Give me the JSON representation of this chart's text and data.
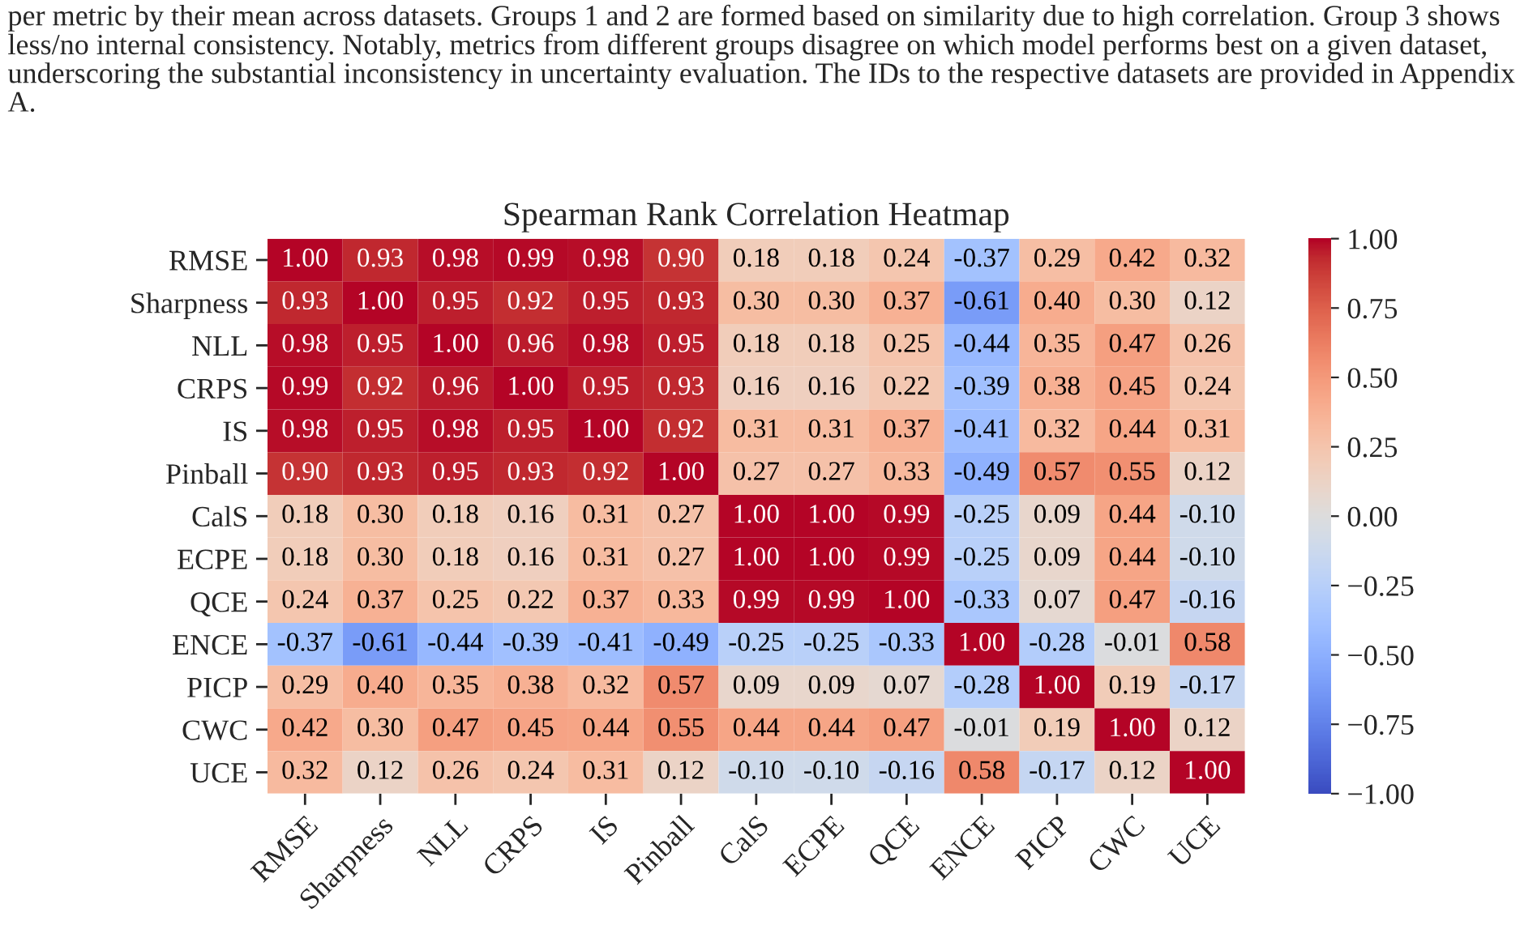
{
  "chart_data": {
    "type": "heatmap",
    "title": "Spearman Rank Correlation Heatmap",
    "annotations": [
      "per metric by their mean across datasets. Groups 1 and 2 are formed based on similarity due to high correlation. Group 3 shows less/no internal consistency. Notably, metrics from different groups disagree on which model performs best on a given dataset, underscoring the substantial inconsistency in uncertainty evaluation. The IDs to the respective datasets are provided in Appendix A."
    ],
    "categories": [
      "RMSE",
      "Sharpness",
      "NLL",
      "CRPS",
      "IS",
      "Pinball",
      "CalS",
      "ECPE",
      "QCE",
      "ENCE",
      "PICP",
      "CWC",
      "UCE"
    ],
    "y_categories": [
      "RMSE",
      "Sharpness",
      "NLL",
      "CRPS",
      "IS",
      "Pinball",
      "CalS",
      "ECPE",
      "QCE",
      "ENCE",
      "PICP",
      "CWC",
      "UCE"
    ],
    "cells": [
      [
        1.0,
        0.93,
        0.98,
        0.99,
        0.98,
        0.9,
        0.18,
        0.18,
        0.24,
        -0.37,
        0.29,
        0.42,
        0.32
      ],
      [
        0.93,
        1.0,
        0.95,
        0.92,
        0.95,
        0.93,
        0.3,
        0.3,
        0.37,
        -0.61,
        0.4,
        0.3,
        0.12
      ],
      [
        0.98,
        0.95,
        1.0,
        0.96,
        0.98,
        0.95,
        0.18,
        0.18,
        0.25,
        -0.44,
        0.35,
        0.47,
        0.26
      ],
      [
        0.99,
        0.92,
        0.96,
        1.0,
        0.95,
        0.93,
        0.16,
        0.16,
        0.22,
        -0.39,
        0.38,
        0.45,
        0.24
      ],
      [
        0.98,
        0.95,
        0.98,
        0.95,
        1.0,
        0.92,
        0.31,
        0.31,
        0.37,
        -0.41,
        0.32,
        0.44,
        0.31
      ],
      [
        0.9,
        0.93,
        0.95,
        0.93,
        0.92,
        1.0,
        0.27,
        0.27,
        0.33,
        -0.49,
        0.57,
        0.55,
        0.12
      ],
      [
        0.18,
        0.3,
        0.18,
        0.16,
        0.31,
        0.27,
        1.0,
        1.0,
        0.99,
        -0.25,
        0.09,
        0.44,
        -0.1
      ],
      [
        0.18,
        0.3,
        0.18,
        0.16,
        0.31,
        0.27,
        1.0,
        1.0,
        0.99,
        -0.25,
        0.09,
        0.44,
        -0.1
      ],
      [
        0.24,
        0.37,
        0.25,
        0.22,
        0.37,
        0.33,
        0.99,
        0.99,
        1.0,
        -0.33,
        0.07,
        0.47,
        -0.16
      ],
      [
        -0.37,
        -0.61,
        -0.44,
        -0.39,
        -0.41,
        -0.49,
        -0.25,
        -0.25,
        -0.33,
        1.0,
        -0.28,
        -0.01,
        0.58
      ],
      [
        0.29,
        0.4,
        0.35,
        0.38,
        0.32,
        0.57,
        0.09,
        0.09,
        0.07,
        -0.28,
        1.0,
        0.19,
        -0.17
      ],
      [
        0.42,
        0.3,
        0.47,
        0.45,
        0.44,
        0.55,
        0.44,
        0.44,
        0.47,
        -0.01,
        0.19,
        1.0,
        0.12
      ],
      [
        0.32,
        0.12,
        0.26,
        0.24,
        0.31,
        0.12,
        -0.1,
        -0.1,
        -0.16,
        0.58,
        -0.17,
        0.12,
        1.0
      ]
    ],
    "cell_labels": [
      [
        "1.00",
        "0.93",
        "0.98",
        "0.99",
        "0.98",
        "0.90",
        "0.18",
        "0.18",
        "0.24",
        "-0.37",
        "0.29",
        "0.42",
        "0.32"
      ],
      [
        "0.93",
        "1.00",
        "0.95",
        "0.92",
        "0.95",
        "0.93",
        "0.30",
        "0.30",
        "0.37",
        "-0.61",
        "0.40",
        "0.30",
        "0.12"
      ],
      [
        "0.98",
        "0.95",
        "1.00",
        "0.96",
        "0.98",
        "0.95",
        "0.18",
        "0.18",
        "0.25",
        "-0.44",
        "0.35",
        "0.47",
        "0.26"
      ],
      [
        "0.99",
        "0.92",
        "0.96",
        "1.00",
        "0.95",
        "0.93",
        "0.16",
        "0.16",
        "0.22",
        "-0.39",
        "0.38",
        "0.45",
        "0.24"
      ],
      [
        "0.98",
        "0.95",
        "0.98",
        "0.95",
        "1.00",
        "0.92",
        "0.31",
        "0.31",
        "0.37",
        "-0.41",
        "0.32",
        "0.44",
        "0.31"
      ],
      [
        "0.90",
        "0.93",
        "0.95",
        "0.93",
        "0.92",
        "1.00",
        "0.27",
        "0.27",
        "0.33",
        "-0.49",
        "0.57",
        "0.55",
        "0.12"
      ],
      [
        "0.18",
        "0.30",
        "0.18",
        "0.16",
        "0.31",
        "0.27",
        "1.00",
        "1.00",
        "0.99",
        "-0.25",
        "0.09",
        "0.44",
        "-0.10"
      ],
      [
        "0.18",
        "0.30",
        "0.18",
        "0.16",
        "0.31",
        "0.27",
        "1.00",
        "1.00",
        "0.99",
        "-0.25",
        "0.09",
        "0.44",
        "-0.10"
      ],
      [
        "0.24",
        "0.37",
        "0.25",
        "0.22",
        "0.37",
        "0.33",
        "0.99",
        "0.99",
        "1.00",
        "-0.33",
        "0.07",
        "0.47",
        "-0.16"
      ],
      [
        "-0.37",
        "-0.61",
        "-0.44",
        "-0.39",
        "-0.41",
        "-0.49",
        "-0.25",
        "-0.25",
        "-0.33",
        "1.00",
        "-0.28",
        "-0.01",
        "0.58"
      ],
      [
        "0.29",
        "0.40",
        "0.35",
        "0.38",
        "0.32",
        "0.57",
        "0.09",
        "0.09",
        "0.07",
        "-0.28",
        "1.00",
        "0.19",
        "-0.17"
      ],
      [
        "0.42",
        "0.30",
        "0.47",
        "0.45",
        "0.44",
        "0.55",
        "0.44",
        "0.44",
        "0.47",
        "-0.01",
        "0.19",
        "1.00",
        "0.12"
      ],
      [
        "0.32",
        "0.12",
        "0.26",
        "0.24",
        "0.31",
        "0.12",
        "-0.10",
        "-0.10",
        "-0.16",
        "0.58",
        "-0.17",
        "0.12",
        "1.00"
      ]
    ],
    "clim": [
      -1,
      1
    ],
    "cticks": [
      {
        "value": -1,
        "label": "−1.00"
      },
      {
        "value": -0.75,
        "label": "−0.75"
      },
      {
        "value": -0.5,
        "label": "−0.50"
      },
      {
        "value": -0.25,
        "label": "−0.25"
      },
      {
        "value": 0,
        "label": "0.00"
      },
      {
        "value": 0.25,
        "label": "0.25"
      },
      {
        "value": 0.5,
        "label": "0.50"
      },
      {
        "value": 0.75,
        "label": "0.75"
      },
      {
        "value": 1,
        "label": "1.00"
      }
    ],
    "data_labels": true
  }
}
